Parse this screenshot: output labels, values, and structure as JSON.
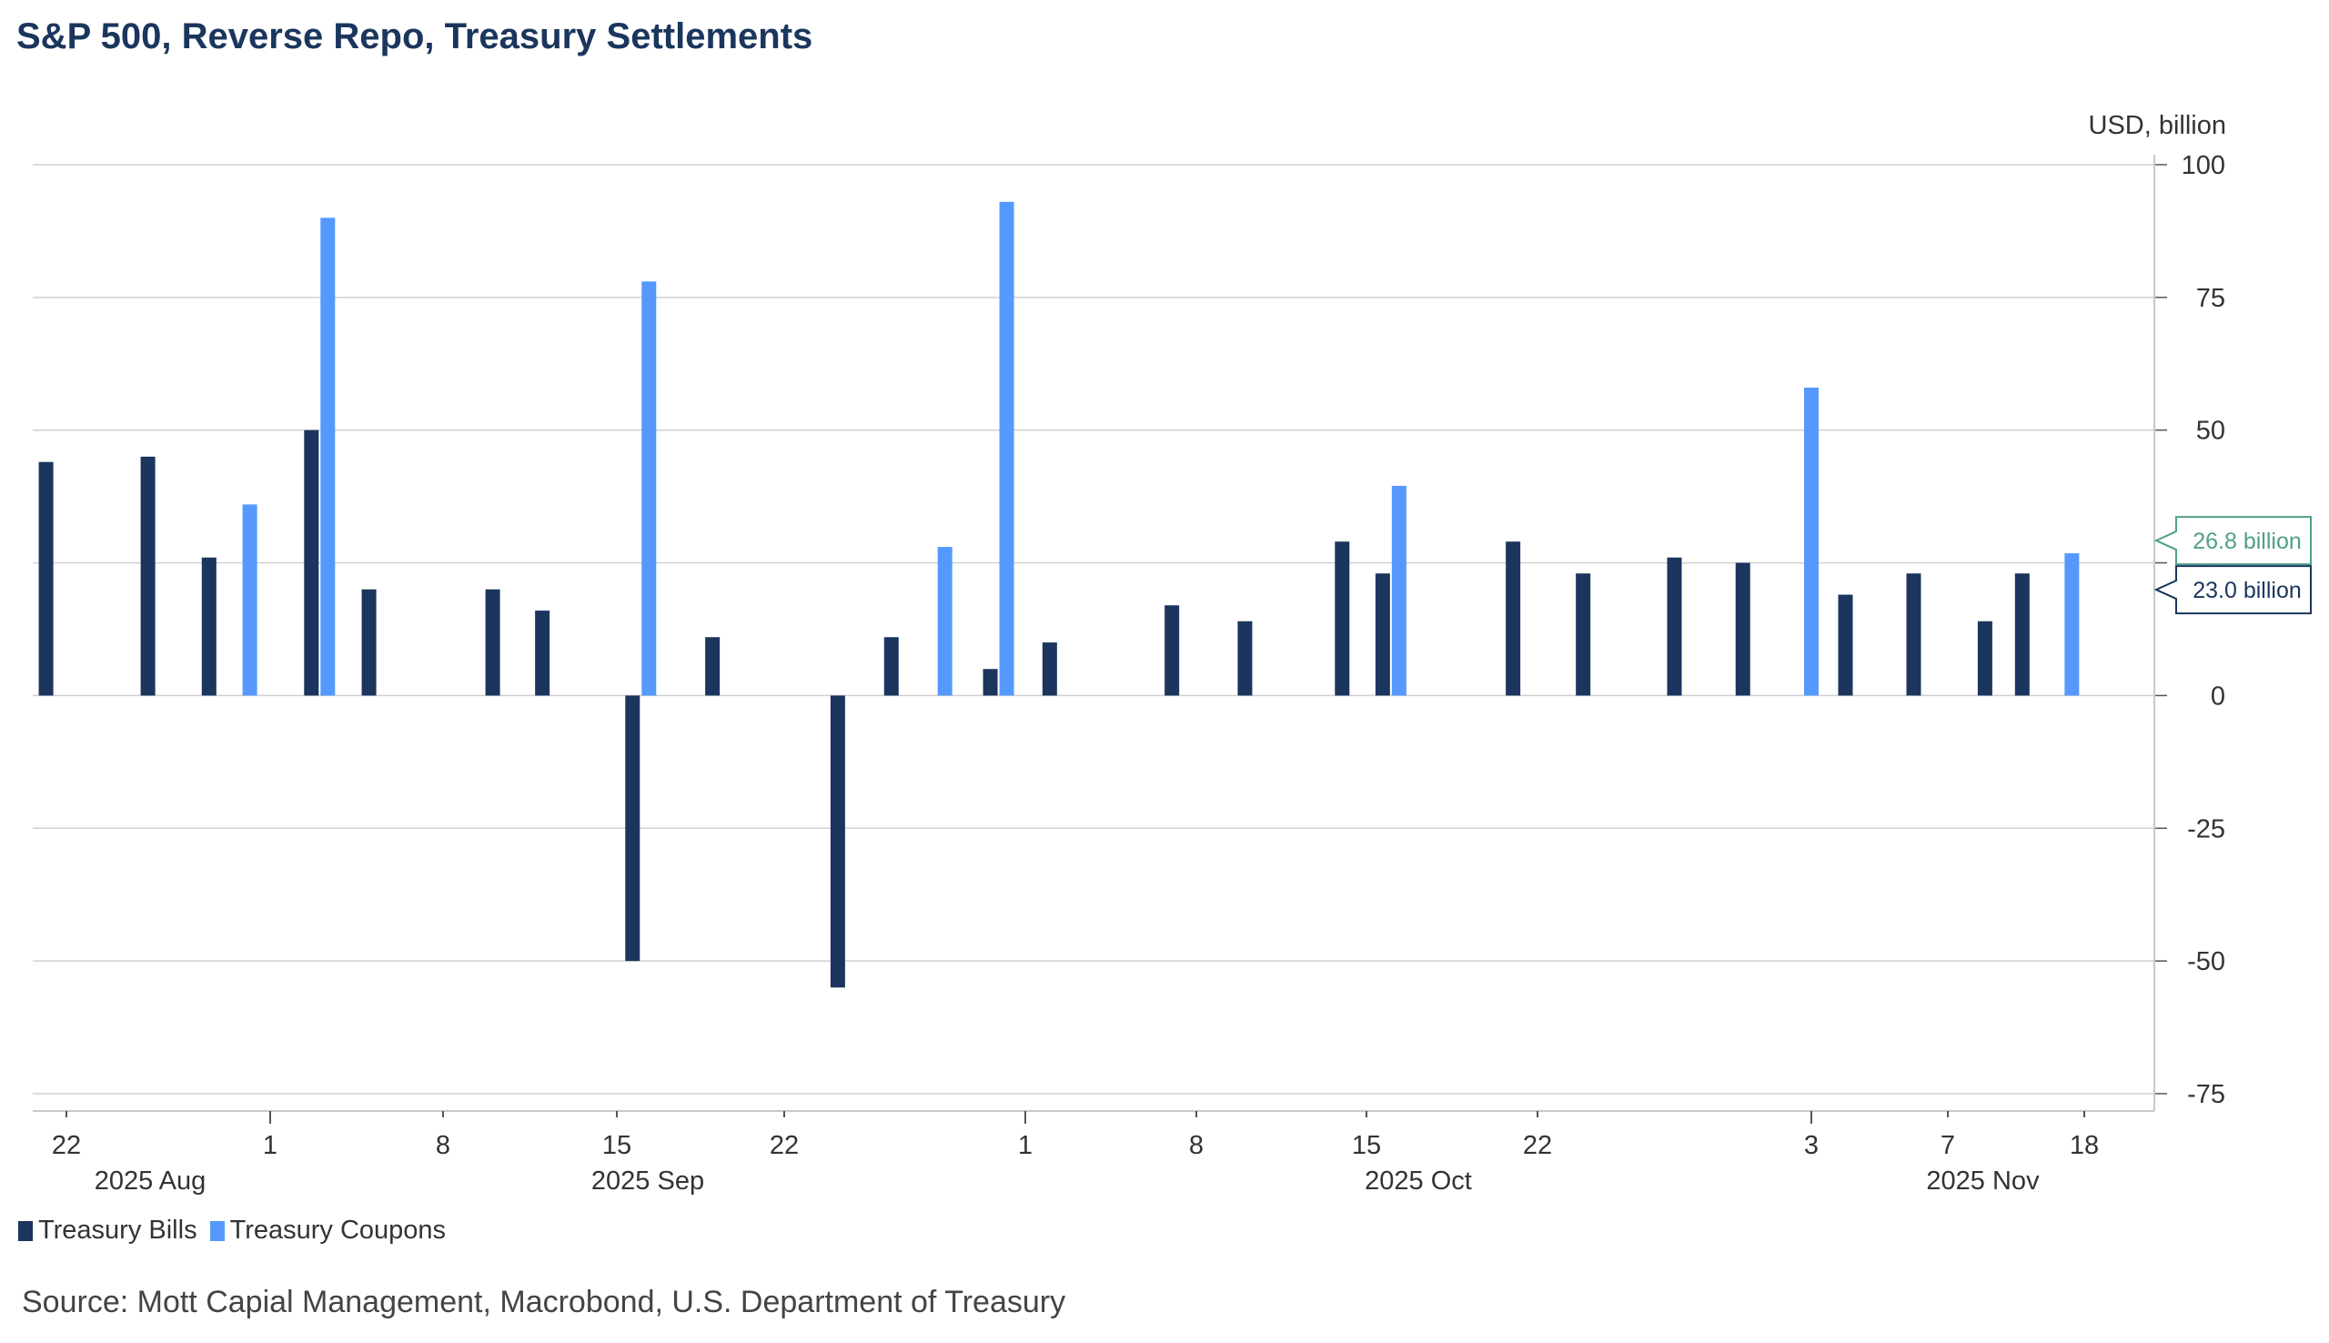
{
  "chart_data": {
    "type": "bar",
    "title": "S&P 500, Reverse Repo, Treasury Settlements",
    "ylabel": "USD, billion",
    "xlabel": "",
    "ylim": [
      -75,
      100
    ],
    "yticks": [
      100,
      75,
      50,
      25,
      0,
      -25,
      -50,
      -75
    ],
    "grid": true,
    "legend_position": "bottom-left",
    "y_axis_side": "right",
    "xticks": [
      {
        "date": "2025-08-22",
        "label": "22"
      },
      {
        "date": "2025-09-01",
        "label": "1"
      },
      {
        "date": "2025-09-08",
        "label": "8"
      },
      {
        "date": "2025-09-15",
        "label": "15"
      },
      {
        "date": "2025-09-22",
        "label": "22"
      },
      {
        "date": "2025-10-01",
        "label": "1"
      },
      {
        "date": "2025-10-08",
        "label": "8"
      },
      {
        "date": "2025-10-15",
        "label": "15"
      },
      {
        "date": "2025-10-22",
        "label": "22"
      },
      {
        "date": "2025-11-03",
        "label": "3"
      },
      {
        "date": "2025-11-07",
        "label": "7"
      },
      {
        "date": "2025-11-18",
        "label": "18"
      }
    ],
    "months": [
      "2025 Aug",
      "2025 Sep",
      "2025 Oct",
      "2025 Nov"
    ],
    "series": [
      {
        "name": "Treasury Bills",
        "color": "#1c355e",
        "points": [
          [
            "2025-08-21",
            44
          ],
          [
            "2025-08-26",
            45
          ],
          [
            "2025-08-29",
            26
          ],
          [
            "2025-09-03",
            50
          ],
          [
            "2025-09-05",
            20
          ],
          [
            "2025-09-10",
            20
          ],
          [
            "2025-09-12",
            16
          ],
          [
            "2025-09-16",
            -50
          ],
          [
            "2025-09-19",
            11
          ],
          [
            "2025-09-24",
            -55
          ],
          [
            "2025-09-26",
            11
          ],
          [
            "2025-09-30",
            5
          ],
          [
            "2025-10-02",
            10
          ],
          [
            "2025-10-07",
            17
          ],
          [
            "2025-10-10",
            14
          ],
          [
            "2025-10-14",
            29
          ],
          [
            "2025-10-16",
            23
          ],
          [
            "2025-10-21",
            29
          ],
          [
            "2025-10-24",
            23
          ],
          [
            "2025-10-28",
            26
          ],
          [
            "2025-10-31",
            25
          ],
          [
            "2025-11-04",
            19
          ],
          [
            "2025-11-06",
            23
          ],
          [
            "2025-11-10",
            14
          ],
          [
            "2025-11-13",
            23
          ]
        ]
      },
      {
        "name": "Treasury Coupons",
        "color": "#5599ff",
        "points": [
          [
            "2025-08-31",
            36
          ],
          [
            "2025-09-03",
            90
          ],
          [
            "2025-09-16",
            78
          ],
          [
            "2025-09-28",
            28
          ],
          [
            "2025-09-30",
            93
          ],
          [
            "2025-10-16",
            39.5
          ],
          [
            "2025-11-03",
            58
          ],
          [
            "2025-11-17",
            26.8
          ]
        ]
      }
    ],
    "annotations": [
      {
        "label": "26.8 billion",
        "value": 26.8,
        "color": "#4fa08a"
      },
      {
        "label": "23.0 billion",
        "value": 23.0,
        "color": "#1c355e"
      }
    ]
  },
  "source": "Source: Mott Capial Management, Macrobond, U.S. Department of Treasury"
}
